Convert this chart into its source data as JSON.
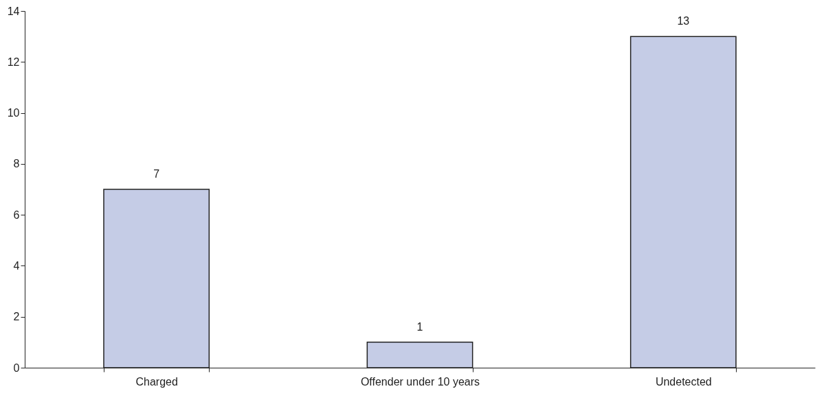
{
  "chart_data": {
    "type": "bar",
    "categories": [
      "Charged",
      "Offender under 10 years",
      "Undetected"
    ],
    "values": [
      7,
      1,
      13
    ],
    "color": "#c5cce6",
    "ylim": [
      0,
      14
    ],
    "yticks": [
      0,
      2,
      4,
      6,
      8,
      10,
      12,
      14
    ],
    "grid": false,
    "data_labels": true
  }
}
